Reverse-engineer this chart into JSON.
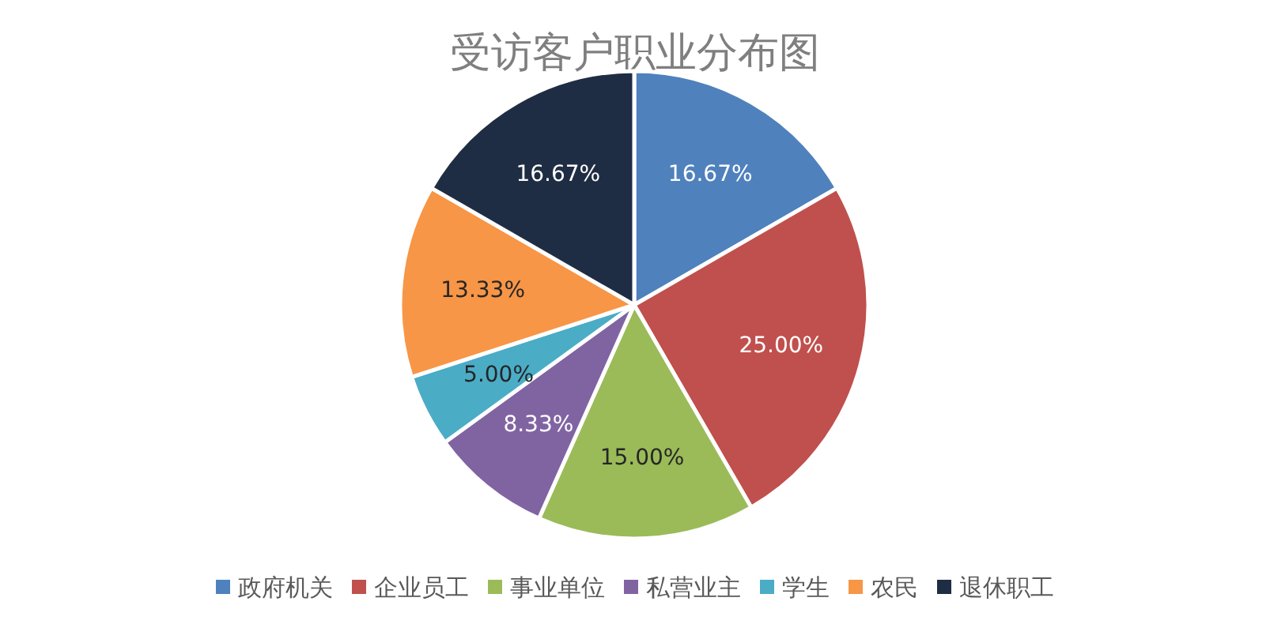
{
  "chart_data": {
    "type": "pie",
    "title": "受访客户职业分布图",
    "categories": [
      "政府机关",
      "企业员工",
      "事业单位",
      "私营业主",
      "学生",
      "农民",
      "退休职工"
    ],
    "values": [
      16.67,
      25.0,
      15.0,
      8.33,
      5.0,
      13.33,
      16.67
    ],
    "value_labels": [
      "16.67%",
      "25.00%",
      "15.00%",
      "8.33%",
      "5.00%",
      "13.33%",
      "16.67%"
    ],
    "colors": [
      "#4f81bd",
      "#c0504d",
      "#9bbb59",
      "#8064a2",
      "#4bacc6",
      "#f79646",
      "#1f2d44"
    ],
    "legend": "bottom"
  }
}
